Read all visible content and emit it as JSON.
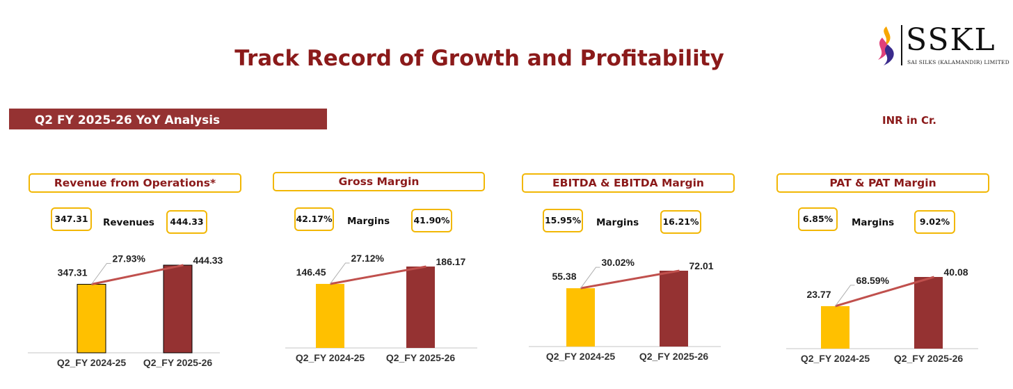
{
  "title": "Track Record of Growth and Profitability",
  "logo": {
    "text": "SSKL",
    "subtitle": "SAI SILKS (KALAMANDIR) LIMITED"
  },
  "banner": "Q2 FY 2025-26 YoY Analysis",
  "unit": "INR in Cr.",
  "colors": {
    "prior": "#FFC000",
    "current": "#953232",
    "trend": "#C0504D",
    "accent": "#8B1A1A"
  },
  "panels": [
    {
      "header": "Revenue from Operations*",
      "left_value": "347.31",
      "middle_label": "Revenues",
      "right_value": "444.33"
    },
    {
      "header": "Gross Margin",
      "left_value": "42.17%",
      "middle_label": "Margins",
      "right_value": "41.90%"
    },
    {
      "header": "EBITDA & EBITDA Margin",
      "left_value": "15.95%",
      "middle_label": "Margins",
      "right_value": "16.21%"
    },
    {
      "header": "PAT & PAT Margin",
      "left_value": "6.85%",
      "middle_label": "Margins",
      "right_value": "9.02%"
    }
  ],
  "chart_data": [
    {
      "type": "bar",
      "categories": [
        "Q2_FY 2024-25",
        "Q2_FY 2025-26"
      ],
      "values": [
        347.31,
        444.33
      ],
      "value_labels": [
        "347.31",
        "444.33"
      ],
      "growth_label": "27.93%"
    },
    {
      "type": "bar",
      "categories": [
        "Q2_FY 2024-25",
        "Q2_FY 2025-26"
      ],
      "values": [
        146.45,
        186.17
      ],
      "value_labels": [
        "146.45",
        "186.17"
      ],
      "growth_label": "27.12%"
    },
    {
      "type": "bar",
      "categories": [
        "Q2_FY 2024-25",
        "Q2_FY 2025-26"
      ],
      "values": [
        55.38,
        72.01
      ],
      "value_labels": [
        "55.38",
        "72.01"
      ],
      "growth_label": "30.02%"
    },
    {
      "type": "bar",
      "categories": [
        "Q2_FY 2024-25",
        "Q2_FY 2025-26"
      ],
      "values": [
        23.77,
        40.08
      ],
      "value_labels": [
        "23.77",
        "40.08"
      ],
      "growth_label": "68.59%"
    }
  ]
}
